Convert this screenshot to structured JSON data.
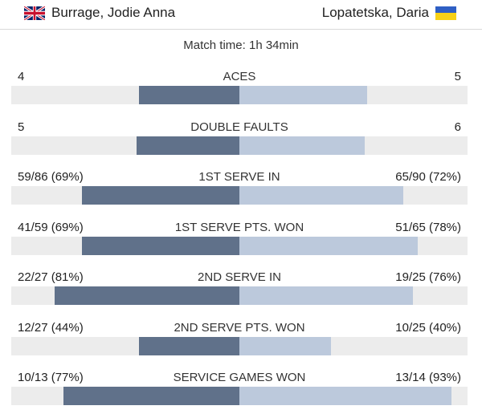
{
  "header": {
    "player_left": {
      "name": "Burrage, Jodie Anna",
      "flag": "gb-flag-icon"
    },
    "player_right": {
      "name": "Lopatetska, Daria",
      "flag": "ua-flag-icon"
    }
  },
  "match_time": "Match time: 1h 34min",
  "colors": {
    "left_bar": "#60718a",
    "right_bar": "#bcc9dc",
    "track": "#ececec"
  },
  "stats": [
    {
      "label": "ACES",
      "left": "4",
      "right": "5",
      "left_fill": 0.44,
      "right_fill": 0.56
    },
    {
      "label": "DOUBLE FAULTS",
      "left": "5",
      "right": "6",
      "left_fill": 0.45,
      "right_fill": 0.55
    },
    {
      "label": "1ST SERVE IN",
      "left": "59/86 (69%)",
      "right": "65/90 (72%)",
      "left_fill": 0.69,
      "right_fill": 0.72
    },
    {
      "label": "1ST SERVE PTS. WON",
      "left": "41/59 (69%)",
      "right": "51/65 (78%)",
      "left_fill": 0.69,
      "right_fill": 0.78
    },
    {
      "label": "2ND SERVE IN",
      "left": "22/27 (81%)",
      "right": "19/25 (76%)",
      "left_fill": 0.81,
      "right_fill": 0.76
    },
    {
      "label": "2ND SERVE PTS. WON",
      "left": "12/27 (44%)",
      "right": "10/25 (40%)",
      "left_fill": 0.44,
      "right_fill": 0.4
    },
    {
      "label": "SERVICE GAMES WON",
      "left": "10/13 (77%)",
      "right": "13/14 (93%)",
      "left_fill": 0.77,
      "right_fill": 0.93
    }
  ]
}
